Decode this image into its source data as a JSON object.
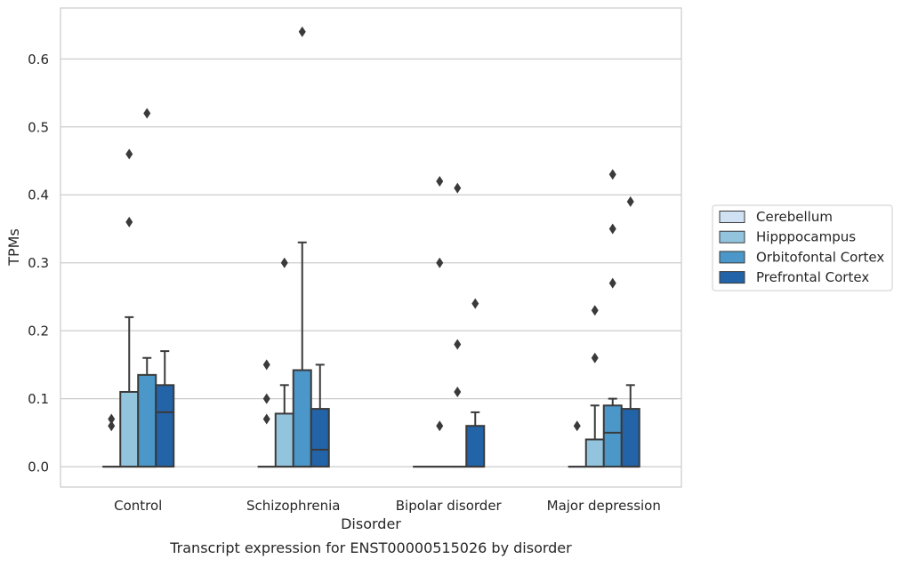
{
  "chart_data": {
    "type": "box",
    "xlabel": "Disorder",
    "ylabel": "TPMs",
    "caption": "Transcript expression for ENST00000515026 by disorder",
    "categories": [
      "Control",
      "Schizophrenia",
      "Bipolar disorder",
      "Major depression"
    ],
    "ylim": [
      -0.03,
      0.675
    ],
    "yticks": [
      0.0,
      0.1,
      0.2,
      0.3,
      0.4,
      0.5,
      0.6
    ],
    "ytick_labels": [
      "0.0",
      "0.1",
      "0.2",
      "0.3",
      "0.4",
      "0.5",
      "0.6"
    ],
    "grid": "horizontal",
    "legend_position": "right",
    "series": [
      {
        "name": "Cerebellum",
        "color": "#cfe1f2",
        "boxes": [
          {
            "q1": 0.0,
            "median": 0.0,
            "q3": 0.0,
            "whisker_low": 0.0,
            "whisker_high": 0.0,
            "outliers": [
              0.06,
              0.07
            ]
          },
          {
            "q1": 0.0,
            "median": 0.0,
            "q3": 0.0,
            "whisker_low": 0.0,
            "whisker_high": 0.0,
            "outliers": [
              0.07,
              0.1,
              0.15
            ]
          },
          {
            "q1": 0.0,
            "median": 0.0,
            "q3": 0.0,
            "whisker_low": 0.0,
            "whisker_high": 0.0,
            "outliers": []
          },
          {
            "q1": 0.0,
            "median": 0.0,
            "q3": 0.0,
            "whisker_low": 0.0,
            "whisker_high": 0.0,
            "outliers": [
              0.06
            ]
          }
        ]
      },
      {
        "name": "Hipppocampus",
        "color": "#93c4de",
        "boxes": [
          {
            "q1": 0.0,
            "median": 0.0,
            "q3": 0.11,
            "whisker_low": 0.0,
            "whisker_high": 0.22,
            "outliers": [
              0.36,
              0.46
            ]
          },
          {
            "q1": 0.0,
            "median": 0.0,
            "q3": 0.078,
            "whisker_low": 0.0,
            "whisker_high": 0.12,
            "outliers": [
              0.3
            ]
          },
          {
            "q1": 0.0,
            "median": 0.0,
            "q3": 0.0,
            "whisker_low": 0.0,
            "whisker_high": 0.0,
            "outliers": [
              0.06,
              0.3,
              0.42
            ]
          },
          {
            "q1": 0.0,
            "median": 0.0,
            "q3": 0.04,
            "whisker_low": 0.0,
            "whisker_high": 0.09,
            "outliers": [
              0.16,
              0.23
            ]
          }
        ]
      },
      {
        "name": "Orbitofontal Cortex",
        "color": "#4b97c9",
        "boxes": [
          {
            "q1": 0.0,
            "median": 0.0,
            "q3": 0.135,
            "whisker_low": 0.0,
            "whisker_high": 0.16,
            "outliers": [
              0.52
            ]
          },
          {
            "q1": 0.0,
            "median": 0.0,
            "q3": 0.142,
            "whisker_low": 0.0,
            "whisker_high": 0.33,
            "outliers": [
              0.64
            ]
          },
          {
            "q1": 0.0,
            "median": 0.0,
            "q3": 0.0,
            "whisker_low": 0.0,
            "whisker_high": 0.0,
            "outliers": [
              0.11,
              0.18,
              0.41
            ]
          },
          {
            "q1": 0.0,
            "median": 0.05,
            "q3": 0.09,
            "whisker_low": 0.0,
            "whisker_high": 0.1,
            "outliers": [
              0.27,
              0.35,
              0.43
            ]
          }
        ]
      },
      {
        "name": "Prefrontal Cortex",
        "color": "#2363a7",
        "boxes": [
          {
            "q1": 0.0,
            "median": 0.08,
            "q3": 0.12,
            "whisker_low": 0.0,
            "whisker_high": 0.17,
            "outliers": []
          },
          {
            "q1": 0.0,
            "median": 0.025,
            "q3": 0.085,
            "whisker_low": 0.0,
            "whisker_high": 0.15,
            "outliers": []
          },
          {
            "q1": 0.0,
            "median": 0.0,
            "q3": 0.06,
            "whisker_low": 0.0,
            "whisker_high": 0.08,
            "outliers": [
              0.24
            ]
          },
          {
            "q1": 0.0,
            "median": 0.0,
            "q3": 0.085,
            "whisker_low": 0.0,
            "whisker_high": 0.12,
            "outliers": [
              0.39
            ]
          }
        ]
      }
    ]
  }
}
